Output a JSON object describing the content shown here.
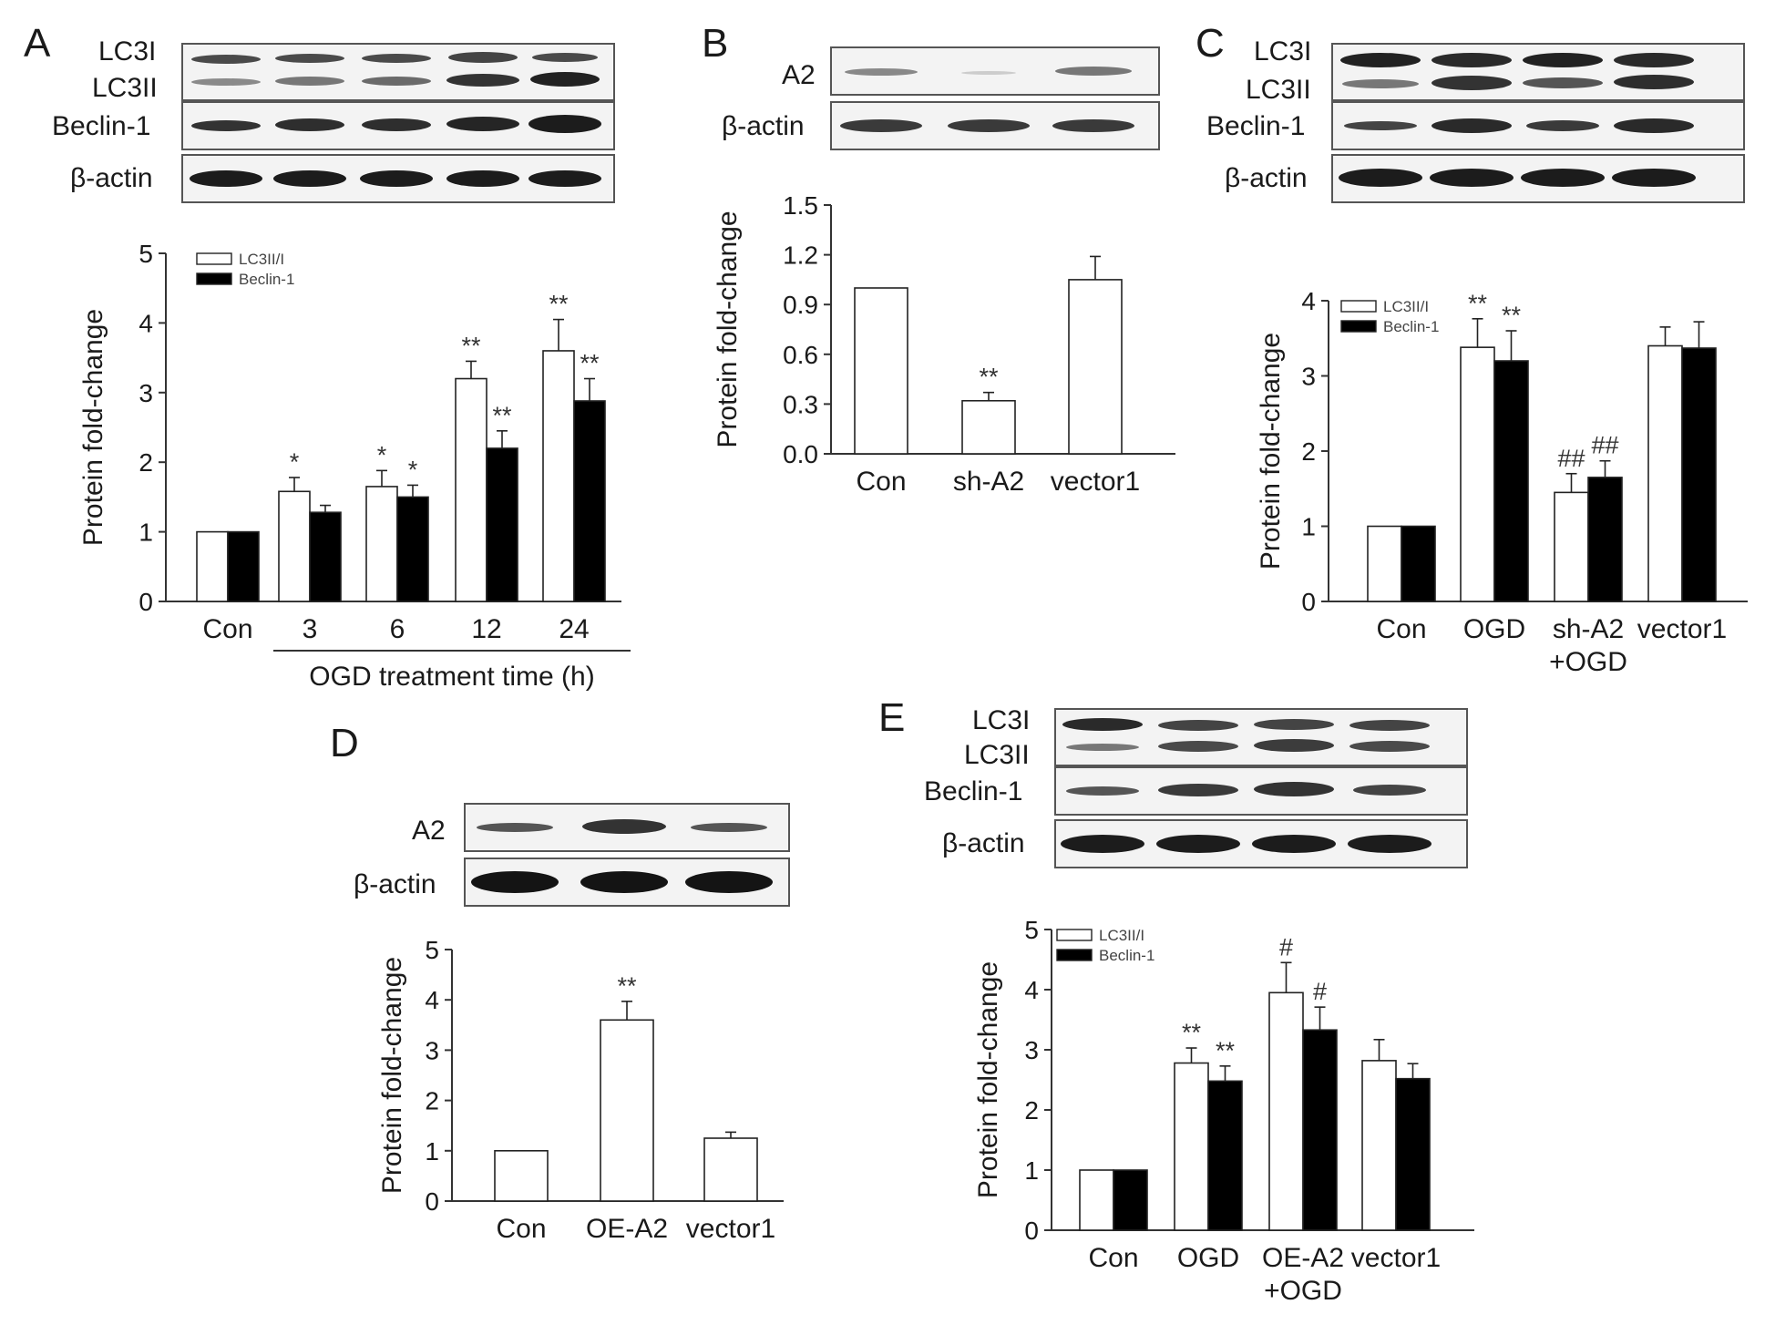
{
  "colors": {
    "open_bar": "#ffffff",
    "filled_bar": "#000000",
    "axis": "#333333",
    "band": "#303030"
  },
  "panels": [
    {
      "letter": "A",
      "blot_labels": [
        "LC3I",
        "LC3II",
        "Beclin-1",
        "β-actin"
      ],
      "x_title": "OGD treatment time (h)"
    },
    {
      "letter": "B",
      "blot_labels": [
        "A2",
        "β-actin"
      ]
    },
    {
      "letter": "C",
      "blot_labels": [
        "LC3I",
        "LC3II",
        "Beclin-1",
        "β-actin"
      ]
    },
    {
      "letter": "D",
      "blot_labels": [
        "A2",
        "β-actin"
      ]
    },
    {
      "letter": "E",
      "blot_labels": [
        "LC3I",
        "LC3II",
        "Beclin-1",
        "β-actin"
      ]
    }
  ],
  "chart_data": [
    {
      "panel": "A",
      "type": "bar",
      "ylabel": "Protein fold-change",
      "xlabel": "OGD treatment time (h)",
      "ylim": [
        0,
        5
      ],
      "yticks": [
        "0",
        "1",
        "2",
        "3",
        "4",
        "5"
      ],
      "categories": [
        "Con",
        "3",
        "6",
        "12",
        "24"
      ],
      "series": [
        {
          "name": "LC3II/I",
          "fill": "open",
          "values": [
            1.0,
            1.58,
            1.65,
            3.2,
            3.6
          ],
          "errors": [
            0,
            0.2,
            0.23,
            0.25,
            0.45
          ],
          "annotations": [
            "",
            "*",
            "*",
            "**",
            "**"
          ]
        },
        {
          "name": "Beclin-1",
          "fill": "filled",
          "values": [
            1.0,
            1.28,
            1.5,
            2.2,
            2.88
          ],
          "errors": [
            0,
            0.1,
            0.17,
            0.25,
            0.32
          ],
          "annotations": [
            "",
            "",
            "*",
            "**",
            "**"
          ]
        }
      ],
      "legend": "top-left"
    },
    {
      "panel": "B",
      "type": "bar",
      "ylabel": "Protein fold-change",
      "ylim": [
        0,
        1.5
      ],
      "yticks": [
        "0.0",
        "0.3",
        "0.6",
        "0.9",
        "1.2",
        "1.5"
      ],
      "categories": [
        "Con",
        "sh-A2",
        "vector1"
      ],
      "series": [
        {
          "fill": "open",
          "values": [
            1.0,
            0.32,
            1.05
          ],
          "errors": [
            0,
            0.05,
            0.14
          ],
          "annotations": [
            "",
            "**",
            ""
          ]
        }
      ]
    },
    {
      "panel": "C",
      "type": "bar",
      "ylabel": "Protein fold-change",
      "ylim": [
        0,
        4
      ],
      "yticks": [
        "0",
        "1",
        "2",
        "3",
        "4"
      ],
      "categories": [
        "Con",
        "OGD",
        "sh-A2\n+OGD",
        "vector1"
      ],
      "series": [
        {
          "name": "LC3II/I",
          "fill": "open",
          "values": [
            1.0,
            3.38,
            1.45,
            3.4
          ],
          "errors": [
            0,
            0.38,
            0.25,
            0.25
          ],
          "annotations": [
            "",
            "**",
            "##",
            ""
          ]
        },
        {
          "name": "Beclin-1",
          "fill": "filled",
          "values": [
            1.0,
            3.2,
            1.65,
            3.37
          ],
          "errors": [
            0,
            0.4,
            0.22,
            0.35
          ],
          "annotations": [
            "",
            "**",
            "##",
            ""
          ]
        }
      ],
      "legend": "top-left"
    },
    {
      "panel": "D",
      "type": "bar",
      "ylabel": "Protein fold-change",
      "ylim": [
        0,
        5
      ],
      "yticks": [
        "0",
        "1",
        "2",
        "3",
        "4",
        "5"
      ],
      "categories": [
        "Con",
        "OE-A2",
        "vector1"
      ],
      "series": [
        {
          "fill": "open",
          "values": [
            1.0,
            3.6,
            1.25
          ],
          "errors": [
            0,
            0.37,
            0.12
          ],
          "annotations": [
            "",
            "**",
            ""
          ]
        }
      ]
    },
    {
      "panel": "E",
      "type": "bar",
      "ylabel": "Protein fold-change",
      "ylim": [
        0,
        5
      ],
      "yticks": [
        "0",
        "1",
        "2",
        "3",
        "4",
        "5"
      ],
      "categories": [
        "Con",
        "OGD",
        "OE-A2\n+OGD",
        "vector1"
      ],
      "series": [
        {
          "name": "LC3II/I",
          "fill": "open",
          "values": [
            1.0,
            2.78,
            3.95,
            2.82
          ],
          "errors": [
            0,
            0.25,
            0.5,
            0.35
          ],
          "annotations": [
            "",
            "**",
            "#",
            ""
          ]
        },
        {
          "name": "Beclin-1",
          "fill": "filled",
          "values": [
            1.0,
            2.48,
            3.33,
            2.52
          ],
          "errors": [
            0,
            0.25,
            0.38,
            0.25
          ],
          "annotations": [
            "",
            "**",
            "#",
            ""
          ]
        }
      ],
      "legend": "top-left"
    }
  ]
}
